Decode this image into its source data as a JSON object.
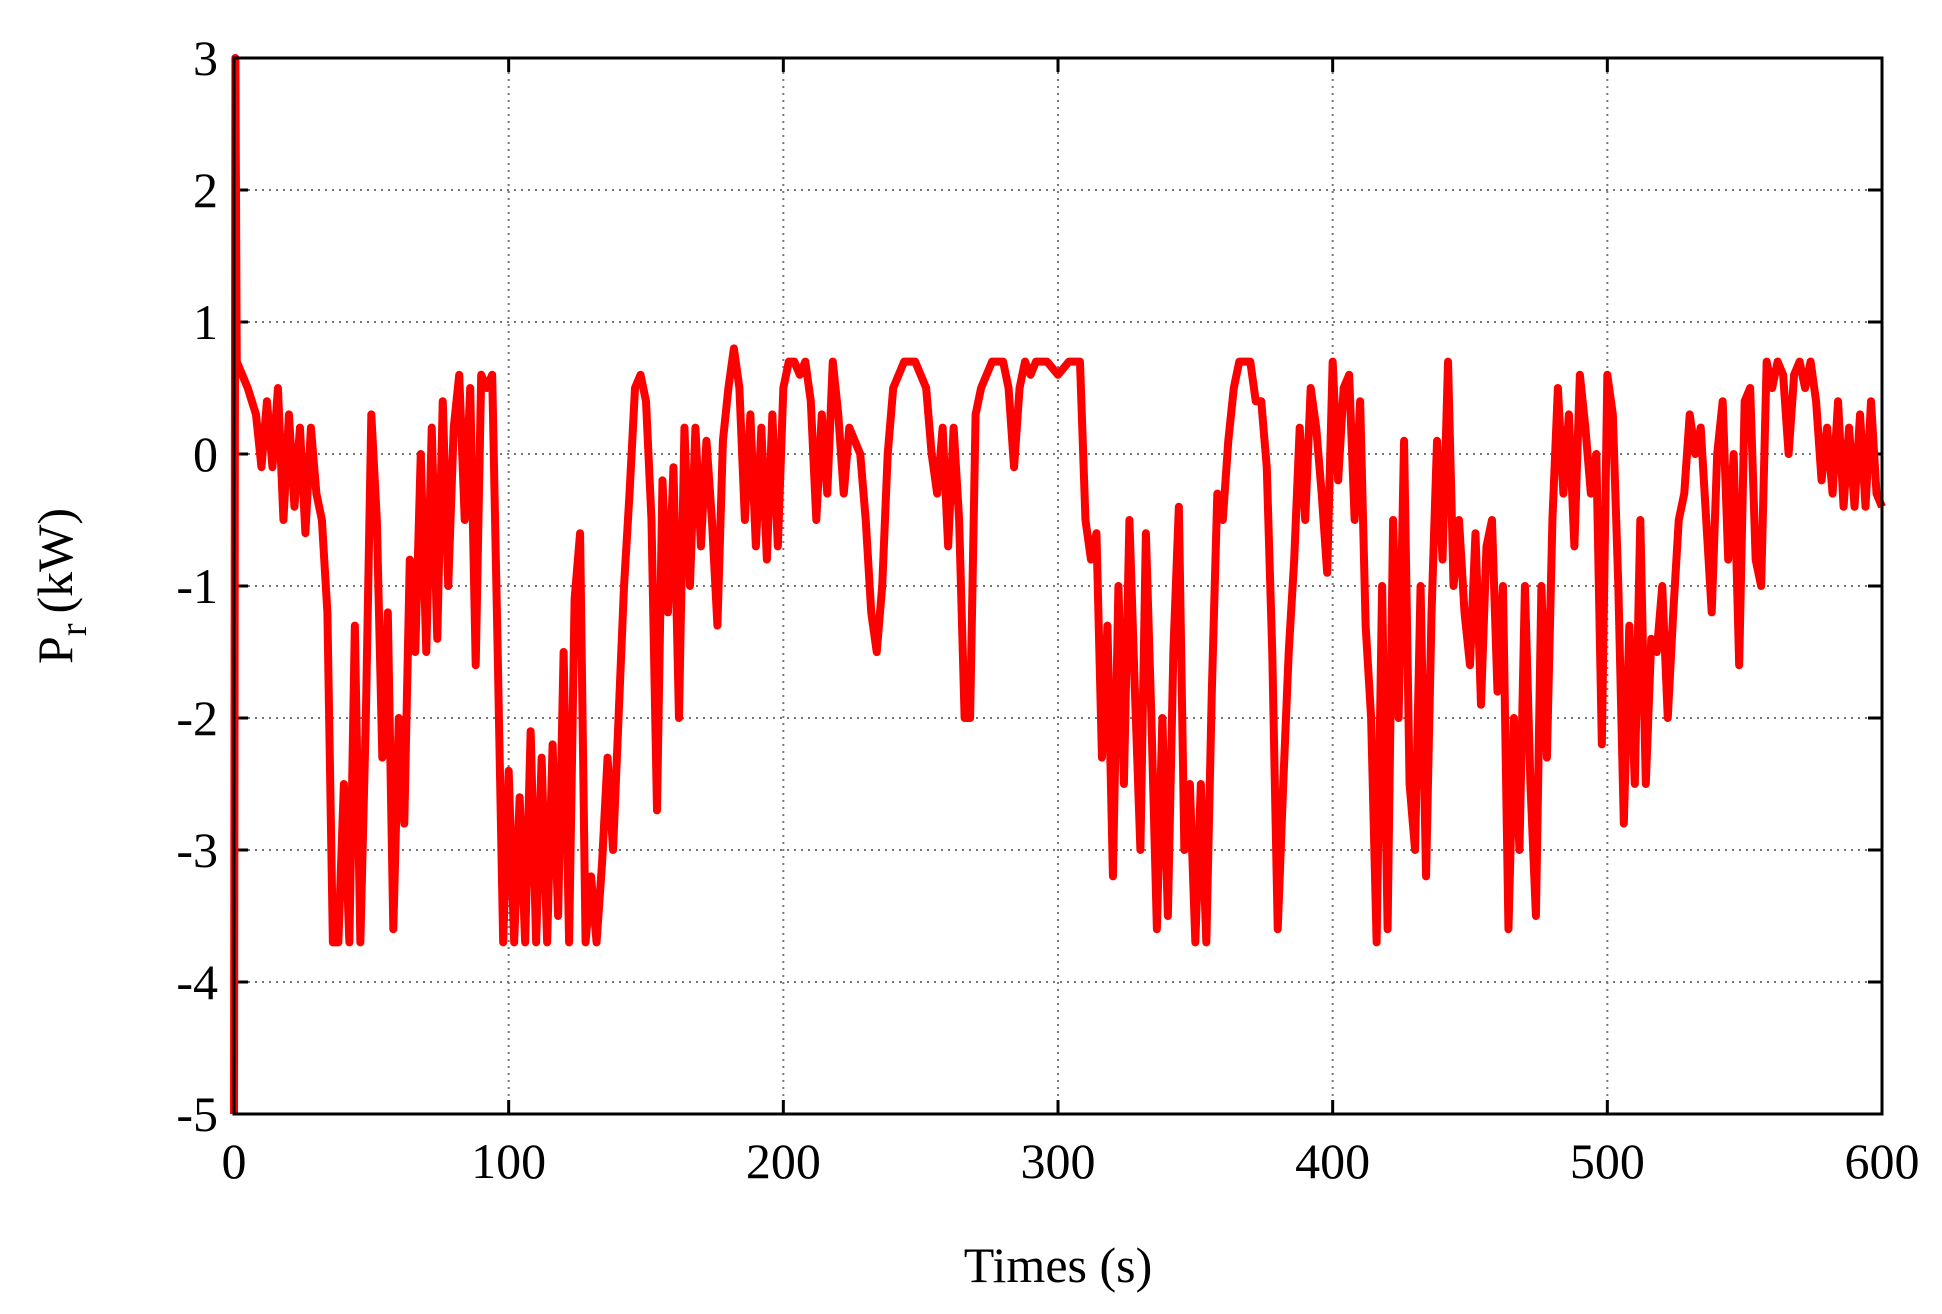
{
  "chart_data": {
    "type": "line",
    "xlabel": "Times (s)",
    "ylabel": {
      "text": "P",
      "subscript": "r",
      "unit": "(kW)"
    },
    "color": "#ff0000",
    "grid": true,
    "xlim": [
      0,
      600
    ],
    "xticks": [
      0,
      100,
      200,
      300,
      400,
      500,
      600
    ],
    "ylim": [
      -5,
      3
    ],
    "yticks": [
      -5,
      -4,
      -3,
      -2,
      -1,
      0,
      1,
      2,
      3
    ],
    "x": [
      0,
      0.5,
      1,
      3,
      5,
      8,
      10,
      12,
      14,
      16,
      18,
      20,
      22,
      24,
      26,
      28,
      30,
      32,
      34,
      36,
      38,
      40,
      42,
      44,
      46,
      48,
      50,
      52,
      54,
      56,
      58,
      60,
      62,
      64,
      66,
      68,
      70,
      72,
      74,
      76,
      78,
      80,
      82,
      84,
      86,
      88,
      90,
      92,
      94,
      96,
      98,
      100,
      102,
      104,
      106,
      108,
      110,
      112,
      114,
      116,
      118,
      120,
      122,
      124,
      126,
      128,
      130,
      132,
      134,
      136,
      138,
      140,
      142,
      144,
      146,
      148,
      150,
      152,
      154,
      156,
      158,
      160,
      162,
      164,
      166,
      168,
      170,
      172,
      174,
      176,
      178,
      180,
      182,
      184,
      186,
      188,
      190,
      192,
      194,
      196,
      198,
      200,
      202,
      204,
      206,
      208,
      210,
      212,
      214,
      216,
      218,
      220,
      222,
      224,
      226,
      228,
      230,
      232,
      234,
      236,
      238,
      240,
      244,
      248,
      252,
      254,
      256,
      258,
      260,
      262,
      264,
      266,
      268,
      270,
      272,
      276,
      280,
      282,
      284,
      286,
      288,
      290,
      292,
      296,
      300,
      304,
      308,
      310,
      312,
      314,
      316,
      318,
      320,
      322,
      324,
      326,
      328,
      330,
      332,
      334,
      336,
      338,
      340,
      342,
      344,
      346,
      348,
      350,
      352,
      354,
      356,
      358,
      360,
      362,
      364,
      366,
      370,
      372,
      374,
      376,
      378,
      380,
      382,
      384,
      386,
      388,
      390,
      392,
      394,
      396,
      398,
      400,
      402,
      404,
      406,
      408,
      410,
      412,
      414,
      416,
      418,
      420,
      422,
      424,
      426,
      428,
      430,
      432,
      434,
      436,
      438,
      440,
      442,
      444,
      446,
      448,
      450,
      452,
      454,
      456,
      458,
      460,
      462,
      464,
      466,
      468,
      470,
      472,
      474,
      476,
      478,
      480,
      482,
      484,
      486,
      488,
      490,
      492,
      494,
      496,
      498,
      500,
      502,
      504,
      506,
      508,
      510,
      512,
      514,
      516,
      518,
      520,
      522,
      524,
      526,
      528,
      530,
      532,
      534,
      536,
      538,
      540,
      542,
      544,
      546,
      548,
      550,
      552,
      554,
      556,
      558,
      560,
      562,
      564,
      566,
      568,
      570,
      572,
      574,
      576,
      578,
      580,
      582,
      584,
      586,
      588,
      590,
      592,
      594,
      596,
      598,
      600
    ],
    "values": [
      -5,
      3,
      0.7,
      0.6,
      0.5,
      0.3,
      -0.1,
      0.4,
      -0.1,
      0.5,
      -0.5,
      0.3,
      -0.4,
      0.2,
      -0.6,
      0.2,
      -0.3,
      -0.5,
      -1.2,
      -3.7,
      -3.7,
      -2.5,
      -3.7,
      -1.3,
      -3.7,
      -2,
      0.3,
      -0.5,
      -2.3,
      -1.2,
      -3.6,
      -2.0,
      -2.8,
      -0.8,
      -1.5,
      0,
      -1.5,
      0.2,
      -1.4,
      0.4,
      -1.0,
      0.2,
      0.6,
      -0.5,
      0.5,
      -1.6,
      0.6,
      0.5,
      0.6,
      -1.5,
      -3.7,
      -2.4,
      -3.7,
      -2.6,
      -3.7,
      -2.1,
      -3.7,
      -2.3,
      -3.7,
      -2.2,
      -3.5,
      -1.5,
      -3.7,
      -1.1,
      -0.6,
      -3.7,
      -3.2,
      -3.7,
      -3.1,
      -2.3,
      -3.0,
      -2.0,
      -1.0,
      -0.3,
      0.5,
      0.6,
      0.4,
      -0.5,
      -2.7,
      -0.2,
      -1.2,
      -0.1,
      -2.0,
      0.2,
      -1.0,
      0.2,
      -0.7,
      0.1,
      -0.5,
      -1.3,
      0.1,
      0.5,
      0.8,
      0.5,
      -0.5,
      0.3,
      -0.7,
      0.2,
      -0.8,
      0.3,
      -0.7,
      0.5,
      0.7,
      0.7,
      0.6,
      0.7,
      0.4,
      -0.5,
      0.3,
      -0.3,
      0.7,
      0.3,
      -0.3,
      0.2,
      0.1,
      0.0,
      -0.5,
      -1.2,
      -1.5,
      -1.0,
      0.0,
      0.5,
      0.7,
      0.7,
      0.5,
      0.0,
      -0.3,
      0.2,
      -0.7,
      0.2,
      -0.5,
      -2.0,
      -2.0,
      0.3,
      0.5,
      0.7,
      0.7,
      0.5,
      -0.1,
      0.5,
      0.7,
      0.6,
      0.7,
      0.7,
      0.6,
      0.7,
      0.7,
      -0.5,
      -0.8,
      -0.6,
      -2.3,
      -1.3,
      -3.2,
      -1.0,
      -2.5,
      -0.5,
      -1.8,
      -3.0,
      -0.6,
      -2.0,
      -3.6,
      -2.0,
      -3.5,
      -1.5,
      -0.4,
      -3.0,
      -2.5,
      -3.7,
      -2.5,
      -3.7,
      -1.8,
      -0.3,
      -0.5,
      0.1,
      0.5,
      0.7,
      0.7,
      0.4,
      0.4,
      -0.1,
      -1.5,
      -3.6,
      -2.5,
      -1.5,
      -0.8,
      0.2,
      -0.5,
      0.5,
      0.2,
      -0.3,
      -0.9,
      0.7,
      -0.2,
      0.5,
      0.6,
      -0.5,
      0.4,
      -1.3,
      -2.0,
      -3.7,
      -1.0,
      -3.6,
      -0.5,
      -2.0,
      0.1,
      -2.5,
      -3.0,
      -1.0,
      -3.2,
      -1.2,
      0.1,
      -0.8,
      0.7,
      -1.0,
      -0.5,
      -1.2,
      -1.6,
      -0.6,
      -1.9,
      -0.7,
      -0.5,
      -1.8,
      -1.0,
      -3.6,
      -2.0,
      -3.0,
      -1.0,
      -2.5,
      -3.5,
      -1.0,
      -2.3,
      -0.5,
      0.5,
      -0.3,
      0.3,
      -0.7,
      0.6,
      0.2,
      -0.3,
      0.0,
      -2.2,
      0.6,
      0.3,
      -1.0,
      -2.8,
      -1.3,
      -2.5,
      -0.5,
      -2.5,
      -1.4,
      -1.5,
      -1.0,
      -2.0,
      -1.2,
      -0.5,
      -0.3,
      0.3,
      0.0,
      0.2,
      -0.5,
      -1.2,
      0.0,
      0.4,
      -0.8,
      0.0,
      -1.6,
      0.4,
      0.5,
      -0.8,
      -1.0,
      0.7,
      0.5,
      0.7,
      0.6,
      0.0,
      0.6,
      0.7,
      0.5,
      0.7,
      0.4,
      -0.2,
      0.2,
      -0.3,
      0.4,
      -0.4,
      0.2,
      -0.4,
      0.3,
      -0.4,
      0.4,
      -0.3,
      -0.4
    ]
  }
}
